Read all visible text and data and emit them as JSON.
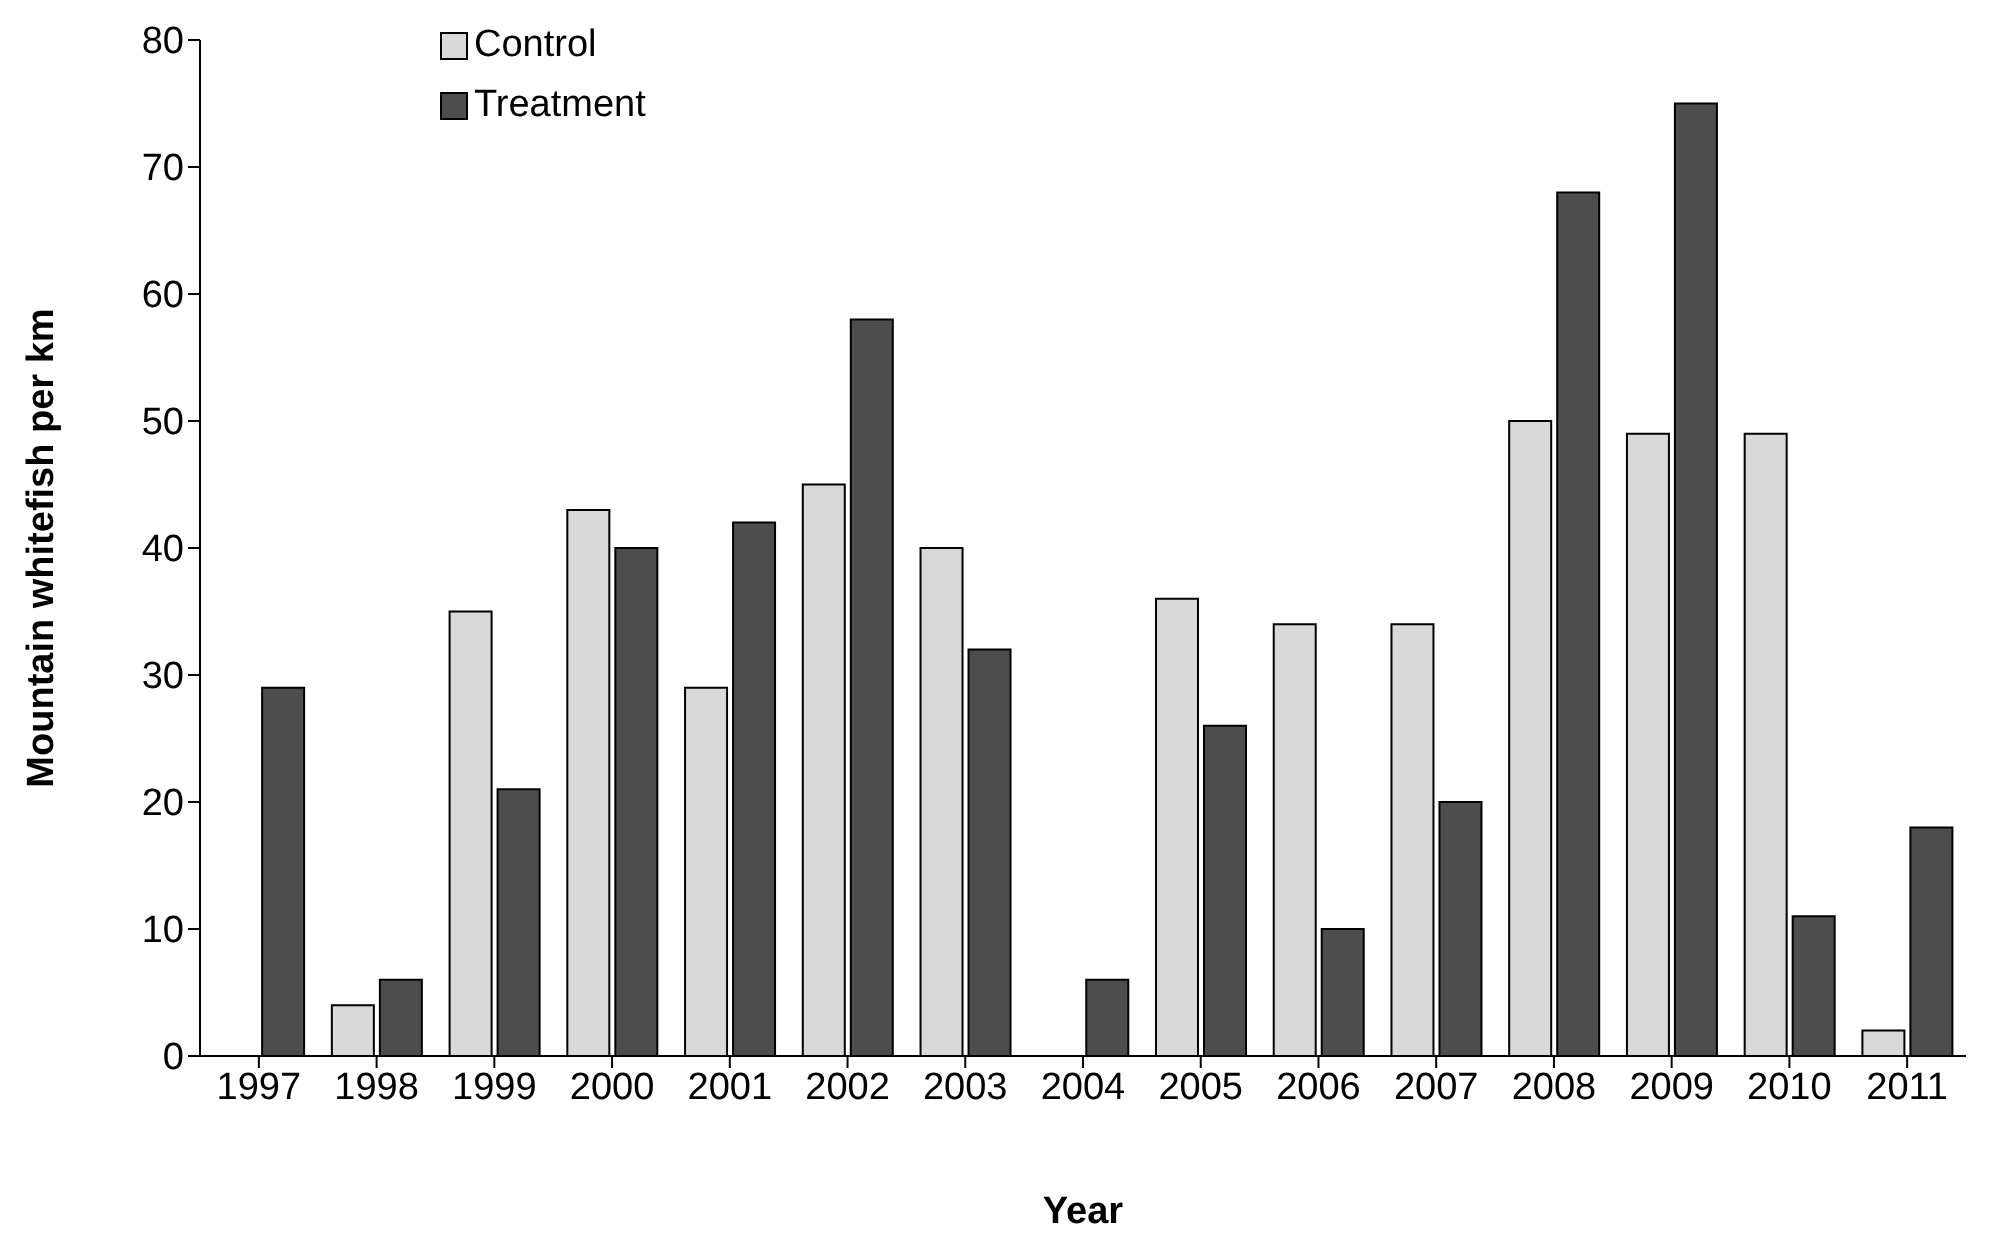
{
  "chart_data": {
    "type": "bar",
    "xlabel": "Year",
    "ylabel": "Mountain whitefish per km",
    "categories": [
      "1997",
      "1998",
      "1999",
      "2000",
      "2001",
      "2002",
      "2003",
      "2004",
      "2005",
      "2006",
      "2007",
      "2008",
      "2009",
      "2010",
      "2011"
    ],
    "series": [
      {
        "name": "Control",
        "color": "#d9d9d9",
        "values": [
          null,
          4,
          35,
          43,
          29,
          45,
          40,
          null,
          36,
          34,
          34,
          50,
          49,
          49,
          2
        ]
      },
      {
        "name": "Treatment",
        "color": "#4d4d4d",
        "values": [
          29,
          6,
          21,
          40,
          42,
          58,
          32,
          6,
          26,
          10,
          20,
          68,
          75,
          11,
          18
        ]
      }
    ],
    "ylim": [
      0,
      80
    ],
    "yticks": [
      0,
      10,
      20,
      30,
      40,
      50,
      60,
      70,
      80
    ],
    "grid": false,
    "legend": "top left"
  }
}
